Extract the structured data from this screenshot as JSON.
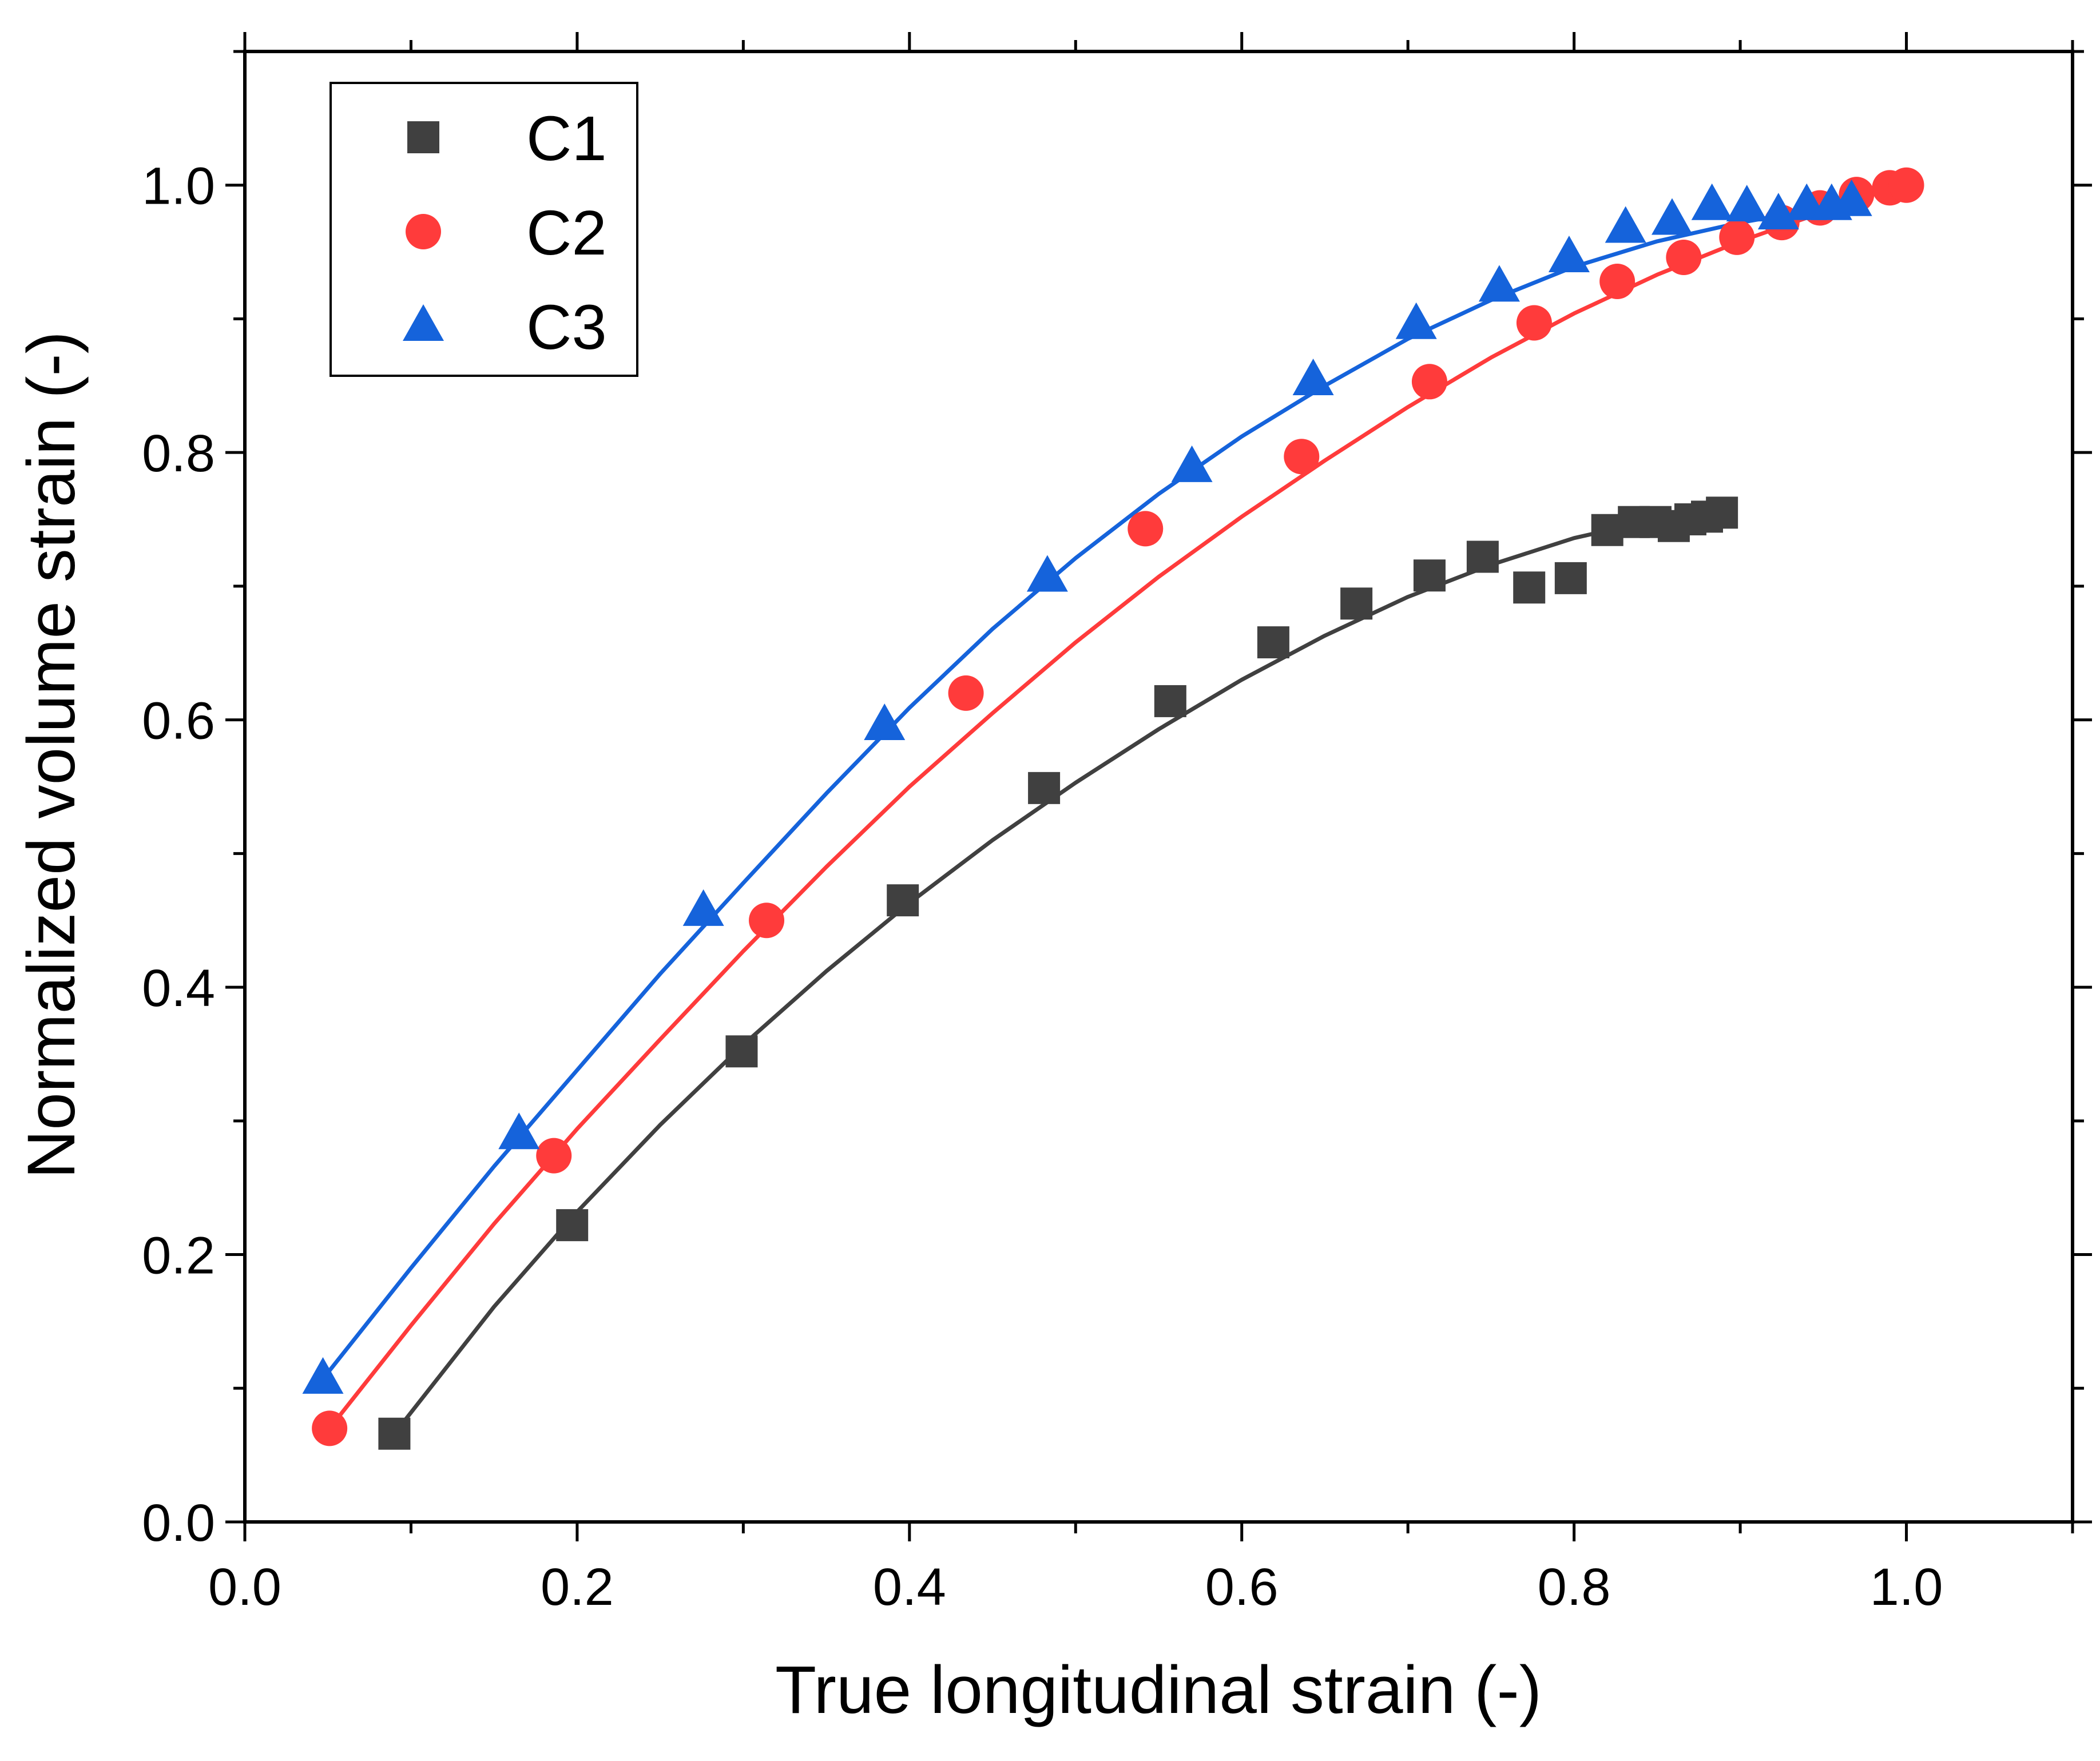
{
  "chart_data": {
    "type": "scatter",
    "xlabel": "True longitudinal strain (-)",
    "ylabel": "Normalized volume strain (-)",
    "xlim": [
      0.0,
      1.1
    ],
    "ylim": [
      0.0,
      1.1
    ],
    "x_ticks": [
      "0.0",
      "0.2",
      "0.4",
      "0.6",
      "0.8",
      "1.0"
    ],
    "y_ticks": [
      "0.0",
      "0.2",
      "0.4",
      "0.6",
      "0.8",
      "1.0"
    ],
    "legend_position": "top-left",
    "grid": false,
    "series": [
      {
        "name": "C1",
        "marker": "square",
        "color": "#404040",
        "x": [
          0.09,
          0.197,
          0.299,
          0.396,
          0.481,
          0.557,
          0.619,
          0.669,
          0.713,
          0.745,
          0.773,
          0.798,
          0.82,
          0.836,
          0.849,
          0.86,
          0.87,
          0.88,
          0.889
        ],
        "y": [
          0.066,
          0.222,
          0.352,
          0.465,
          0.549,
          0.614,
          0.658,
          0.687,
          0.708,
          0.722,
          0.699,
          0.706,
          0.742,
          0.748,
          0.748,
          0.745,
          0.75,
          0.752,
          0.755
        ],
        "fit_x": [
          0.09,
          0.15,
          0.2,
          0.25,
          0.3,
          0.35,
          0.4,
          0.45,
          0.5,
          0.55,
          0.6,
          0.65,
          0.7,
          0.75,
          0.8,
          0.85,
          0.889
        ],
        "fit_y": [
          0.066,
          0.161,
          0.232,
          0.297,
          0.357,
          0.412,
          0.463,
          0.51,
          0.553,
          0.593,
          0.63,
          0.663,
          0.692,
          0.716,
          0.736,
          0.75,
          0.756
        ]
      },
      {
        "name": "C2",
        "marker": "circle",
        "color": "#ff3b3b",
        "x": [
          0.051,
          0.186,
          0.314,
          0.434,
          0.542,
          0.636,
          0.713,
          0.776,
          0.826,
          0.866,
          0.898,
          0.925,
          0.948,
          0.97,
          0.99,
          1.0
        ],
        "y": [
          0.07,
          0.274,
          0.45,
          0.62,
          0.743,
          0.797,
          0.853,
          0.897,
          0.928,
          0.946,
          0.961,
          0.972,
          0.983,
          0.993,
          0.998,
          1.0
        ],
        "fit_x": [
          0.051,
          0.1,
          0.15,
          0.2,
          0.25,
          0.3,
          0.35,
          0.4,
          0.45,
          0.5,
          0.55,
          0.6,
          0.65,
          0.7,
          0.75,
          0.8,
          0.85,
          0.9,
          0.95,
          0.99
        ],
        "fit_y": [
          0.07,
          0.147,
          0.223,
          0.294,
          0.361,
          0.427,
          0.49,
          0.55,
          0.605,
          0.658,
          0.707,
          0.752,
          0.794,
          0.834,
          0.871,
          0.904,
          0.933,
          0.958,
          0.98,
          0.998
        ]
      },
      {
        "name": "C3",
        "marker": "triangle",
        "color": "#1563db",
        "x": [
          0.047,
          0.165,
          0.276,
          0.385,
          0.483,
          0.57,
          0.643,
          0.705,
          0.755,
          0.797,
          0.831,
          0.859,
          0.883,
          0.904,
          0.923,
          0.94,
          0.955,
          0.967
        ],
        "y": [
          0.107,
          0.29,
          0.457,
          0.596,
          0.707,
          0.789,
          0.854,
          0.896,
          0.924,
          0.946,
          0.968,
          0.974,
          0.985,
          0.984,
          0.978,
          0.985,
          0.985,
          0.988
        ],
        "fit_x": [
          0.047,
          0.1,
          0.15,
          0.2,
          0.25,
          0.3,
          0.35,
          0.4,
          0.45,
          0.5,
          0.55,
          0.6,
          0.65,
          0.7,
          0.75,
          0.8,
          0.85,
          0.9,
          0.95,
          0.967
        ],
        "fit_y": [
          0.107,
          0.19,
          0.266,
          0.338,
          0.41,
          0.478,
          0.545,
          0.609,
          0.668,
          0.721,
          0.769,
          0.812,
          0.85,
          0.885,
          0.914,
          0.939,
          0.958,
          0.972,
          0.983,
          0.986
        ]
      }
    ]
  }
}
